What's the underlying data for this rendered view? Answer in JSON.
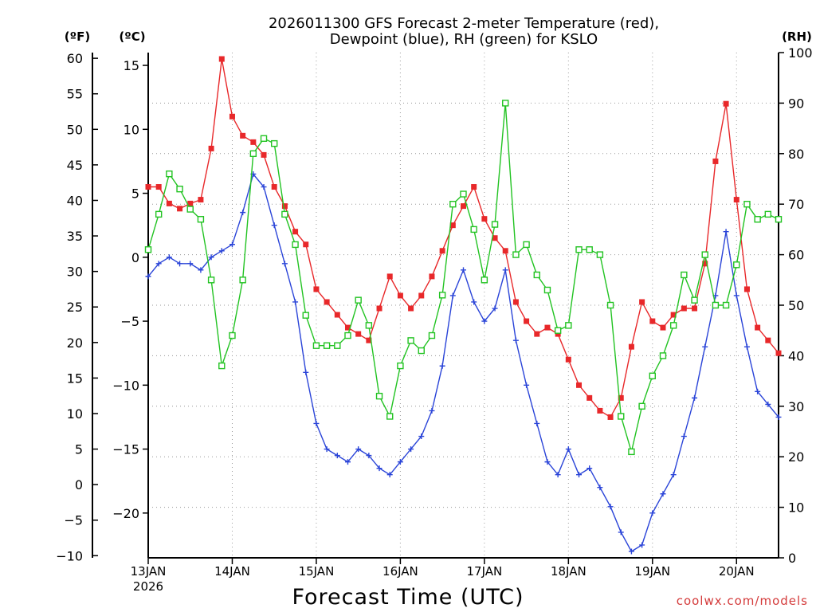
{
  "chart_data": {
    "type": "line",
    "title_line1": "2026011300 GFS Forecast 2-meter Temperature (red),",
    "title_line2": "Dewpoint (blue), RH (green) for KSLO",
    "xlabel": "Forecast Time (UTC)",
    "watermark": "coolwx.com/models",
    "unit_f": "(ºF)",
    "unit_c": "(ºC)",
    "unit_rh": "(RH)",
    "x_range_days": [
      0,
      7.5
    ],
    "x_ticks": [
      {
        "day": 0,
        "label": "13JAN",
        "sub": "2026"
      },
      {
        "day": 1,
        "label": "14JAN",
        "sub": ""
      },
      {
        "day": 2,
        "label": "15JAN",
        "sub": ""
      },
      {
        "day": 3,
        "label": "16JAN",
        "sub": ""
      },
      {
        "day": 4,
        "label": "17JAN",
        "sub": ""
      },
      {
        "day": 5,
        "label": "18JAN",
        "sub": ""
      },
      {
        "day": 6,
        "label": "19JAN",
        "sub": ""
      },
      {
        "day": 7,
        "label": "20JAN",
        "sub": ""
      }
    ],
    "celsius_axis": {
      "range": [
        -23.5,
        16
      ],
      "ticks": [
        15,
        10,
        5,
        0,
        -5,
        -10,
        -15,
        -20
      ]
    },
    "fahrenheit_axis": {
      "ticks": [
        60,
        55,
        50,
        45,
        40,
        35,
        30,
        25,
        20,
        15,
        10,
        5,
        0,
        -5,
        -10
      ]
    },
    "rh_axis": {
      "range": [
        0,
        100
      ],
      "ticks": [
        100,
        90,
        80,
        70,
        60,
        50,
        40,
        30,
        20,
        10,
        0
      ]
    },
    "series": [
      {
        "name": "2-meter Temperature",
        "units": "C",
        "color": "#e8282a",
        "marker": "filled-square",
        "points": [
          [
            0,
            5.5
          ],
          [
            0.125,
            5.5
          ],
          [
            0.25,
            4.2
          ],
          [
            0.375,
            3.8
          ],
          [
            0.5,
            4.2
          ],
          [
            0.625,
            4.5
          ],
          [
            0.75,
            8.5
          ],
          [
            0.875,
            15.5
          ],
          [
            1.0,
            11.0
          ],
          [
            1.125,
            9.5
          ],
          [
            1.25,
            9.0
          ],
          [
            1.375,
            8.0
          ],
          [
            1.5,
            5.5
          ],
          [
            1.625,
            4.0
          ],
          [
            1.75,
            2.0
          ],
          [
            1.875,
            1.0
          ],
          [
            2.0,
            -2.5
          ],
          [
            2.125,
            -3.5
          ],
          [
            2.25,
            -4.5
          ],
          [
            2.375,
            -5.5
          ],
          [
            2.5,
            -6.0
          ],
          [
            2.625,
            -6.5
          ],
          [
            2.75,
            -4.0
          ],
          [
            2.875,
            -1.5
          ],
          [
            3.0,
            -3.0
          ],
          [
            3.125,
            -4.0
          ],
          [
            3.25,
            -3.0
          ],
          [
            3.375,
            -1.5
          ],
          [
            3.5,
            0.5
          ],
          [
            3.625,
            2.5
          ],
          [
            3.75,
            4.0
          ],
          [
            3.875,
            5.5
          ],
          [
            4.0,
            3.0
          ],
          [
            4.125,
            1.5
          ],
          [
            4.25,
            0.5
          ],
          [
            4.375,
            -3.5
          ],
          [
            4.5,
            -5.0
          ],
          [
            4.625,
            -6.0
          ],
          [
            4.75,
            -5.5
          ],
          [
            4.875,
            -6.0
          ],
          [
            5.0,
            -8.0
          ],
          [
            5.125,
            -10.0
          ],
          [
            5.25,
            -11.0
          ],
          [
            5.375,
            -12.0
          ],
          [
            5.5,
            -12.5
          ],
          [
            5.625,
            -11.0
          ],
          [
            5.75,
            -7.0
          ],
          [
            5.875,
            -3.5
          ],
          [
            6.0,
            -5.0
          ],
          [
            6.125,
            -5.5
          ],
          [
            6.25,
            -4.5
          ],
          [
            6.375,
            -4.0
          ],
          [
            6.5,
            -4.0
          ],
          [
            6.625,
            -0.5
          ],
          [
            6.75,
            7.5
          ],
          [
            6.875,
            12.0
          ],
          [
            7.0,
            4.5
          ],
          [
            7.125,
            -2.5
          ],
          [
            7.25,
            -5.5
          ],
          [
            7.375,
            -6.5
          ],
          [
            7.5,
            -7.5
          ]
        ]
      },
      {
        "name": "Dewpoint",
        "units": "C",
        "color": "#2a44d8",
        "marker": "plus",
        "points": [
          [
            0,
            -1.5
          ],
          [
            0.125,
            -0.5
          ],
          [
            0.25,
            0.0
          ],
          [
            0.375,
            -0.5
          ],
          [
            0.5,
            -0.5
          ],
          [
            0.625,
            -1.0
          ],
          [
            0.75,
            0.0
          ],
          [
            0.875,
            0.5
          ],
          [
            1.0,
            1.0
          ],
          [
            1.125,
            3.5
          ],
          [
            1.25,
            6.5
          ],
          [
            1.375,
            5.5
          ],
          [
            1.5,
            2.5
          ],
          [
            1.625,
            -0.5
          ],
          [
            1.75,
            -3.5
          ],
          [
            1.875,
            -9.0
          ],
          [
            2.0,
            -13.0
          ],
          [
            2.125,
            -15.0
          ],
          [
            2.25,
            -15.5
          ],
          [
            2.375,
            -16.0
          ],
          [
            2.5,
            -15.0
          ],
          [
            2.625,
            -15.5
          ],
          [
            2.75,
            -16.5
          ],
          [
            2.875,
            -17.0
          ],
          [
            3.0,
            -16.0
          ],
          [
            3.125,
            -15.0
          ],
          [
            3.25,
            -14.0
          ],
          [
            3.375,
            -12.0
          ],
          [
            3.5,
            -8.5
          ],
          [
            3.625,
            -3.0
          ],
          [
            3.75,
            -1.0
          ],
          [
            3.875,
            -3.5
          ],
          [
            4.0,
            -5.0
          ],
          [
            4.125,
            -4.0
          ],
          [
            4.25,
            -1.0
          ],
          [
            4.375,
            -6.5
          ],
          [
            4.5,
            -10.0
          ],
          [
            4.625,
            -13.0
          ],
          [
            4.75,
            -16.0
          ],
          [
            4.875,
            -17.0
          ],
          [
            5.0,
            -15.0
          ],
          [
            5.125,
            -17.0
          ],
          [
            5.25,
            -16.5
          ],
          [
            5.375,
            -18.0
          ],
          [
            5.5,
            -19.5
          ],
          [
            5.625,
            -21.5
          ],
          [
            5.75,
            -23.0
          ],
          [
            5.875,
            -22.5
          ],
          [
            6.0,
            -20.0
          ],
          [
            6.125,
            -18.5
          ],
          [
            6.25,
            -17.0
          ],
          [
            6.375,
            -14.0
          ],
          [
            6.5,
            -11.0
          ],
          [
            6.625,
            -7.0
          ],
          [
            6.75,
            -3.0
          ],
          [
            6.875,
            2.0
          ],
          [
            7.0,
            -3.0
          ],
          [
            7.125,
            -7.0
          ],
          [
            7.25,
            -10.5
          ],
          [
            7.375,
            -11.5
          ],
          [
            7.5,
            -12.5
          ]
        ]
      },
      {
        "name": "RH",
        "units": "%",
        "color": "#22c322",
        "marker": "open-square",
        "points": [
          [
            0,
            61
          ],
          [
            0.125,
            68
          ],
          [
            0.25,
            76
          ],
          [
            0.375,
            73
          ],
          [
            0.5,
            69
          ],
          [
            0.625,
            67
          ],
          [
            0.75,
            55
          ],
          [
            0.875,
            38
          ],
          [
            1.0,
            44
          ],
          [
            1.125,
            55
          ],
          [
            1.25,
            80
          ],
          [
            1.375,
            83
          ],
          [
            1.5,
            82
          ],
          [
            1.625,
            68
          ],
          [
            1.75,
            62
          ],
          [
            1.875,
            48
          ],
          [
            2.0,
            42
          ],
          [
            2.125,
            42
          ],
          [
            2.25,
            42
          ],
          [
            2.375,
            44
          ],
          [
            2.5,
            51
          ],
          [
            2.625,
            46
          ],
          [
            2.75,
            32
          ],
          [
            2.875,
            28
          ],
          [
            3.0,
            38
          ],
          [
            3.125,
            43
          ],
          [
            3.25,
            41
          ],
          [
            3.375,
            44
          ],
          [
            3.5,
            52
          ],
          [
            3.625,
            70
          ],
          [
            3.75,
            72
          ],
          [
            3.875,
            65
          ],
          [
            4.0,
            55
          ],
          [
            4.125,
            66
          ],
          [
            4.25,
            90
          ],
          [
            4.375,
            60
          ],
          [
            4.5,
            62
          ],
          [
            4.625,
            56
          ],
          [
            4.75,
            53
          ],
          [
            4.875,
            45
          ],
          [
            5.0,
            46
          ],
          [
            5.125,
            61
          ],
          [
            5.25,
            61
          ],
          [
            5.375,
            60
          ],
          [
            5.5,
            50
          ],
          [
            5.625,
            28
          ],
          [
            5.75,
            21
          ],
          [
            5.875,
            30
          ],
          [
            6.0,
            36
          ],
          [
            6.125,
            40
          ],
          [
            6.25,
            46
          ],
          [
            6.375,
            56
          ],
          [
            6.5,
            51
          ],
          [
            6.625,
            60
          ],
          [
            6.75,
            50
          ],
          [
            6.875,
            50
          ],
          [
            7.0,
            58
          ],
          [
            7.125,
            70
          ],
          [
            7.25,
            67
          ],
          [
            7.375,
            68
          ],
          [
            7.5,
            67
          ]
        ]
      }
    ]
  }
}
